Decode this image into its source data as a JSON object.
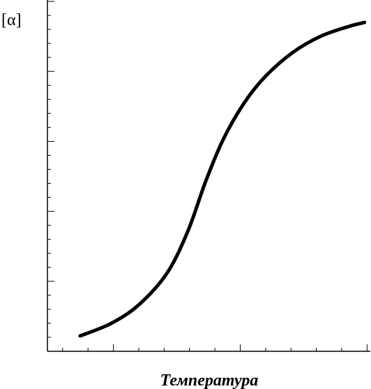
{
  "chart_data": {
    "type": "line",
    "y_label": "[α]",
    "x_label": "Температура",
    "x": [
      1.69,
      2.92,
      4.02,
      5.12,
      5.94,
      6.63,
      7.32,
      8.14,
      8.97,
      10.07,
      11.16,
      12.26,
      12.9
    ],
    "series": [
      {
        "color": "#000000",
        "values": [
          1.1,
          2.0,
          3.35,
          5.6,
          8.6,
          12.1,
          15.1,
          17.7,
          19.6,
          21.35,
          22.5,
          23.2,
          23.5
        ]
      }
    ],
    "xlim": [
      0.4,
      13.1
    ],
    "xticks": [
      1,
      2,
      3,
      4,
      5,
      6,
      7,
      8,
      9,
      10,
      11,
      12,
      13
    ],
    "major_xticks": [
      3,
      8,
      13
    ],
    "ylim": [
      0,
      25.1
    ],
    "yticks": [
      1,
      2,
      3,
      4,
      5,
      6,
      7,
      8,
      9,
      10,
      11,
      12,
      13,
      14,
      15,
      16,
      17,
      18,
      19,
      20,
      21,
      22,
      23,
      24,
      25
    ],
    "major_yticks": [
      5,
      10,
      15,
      20,
      25
    ]
  }
}
